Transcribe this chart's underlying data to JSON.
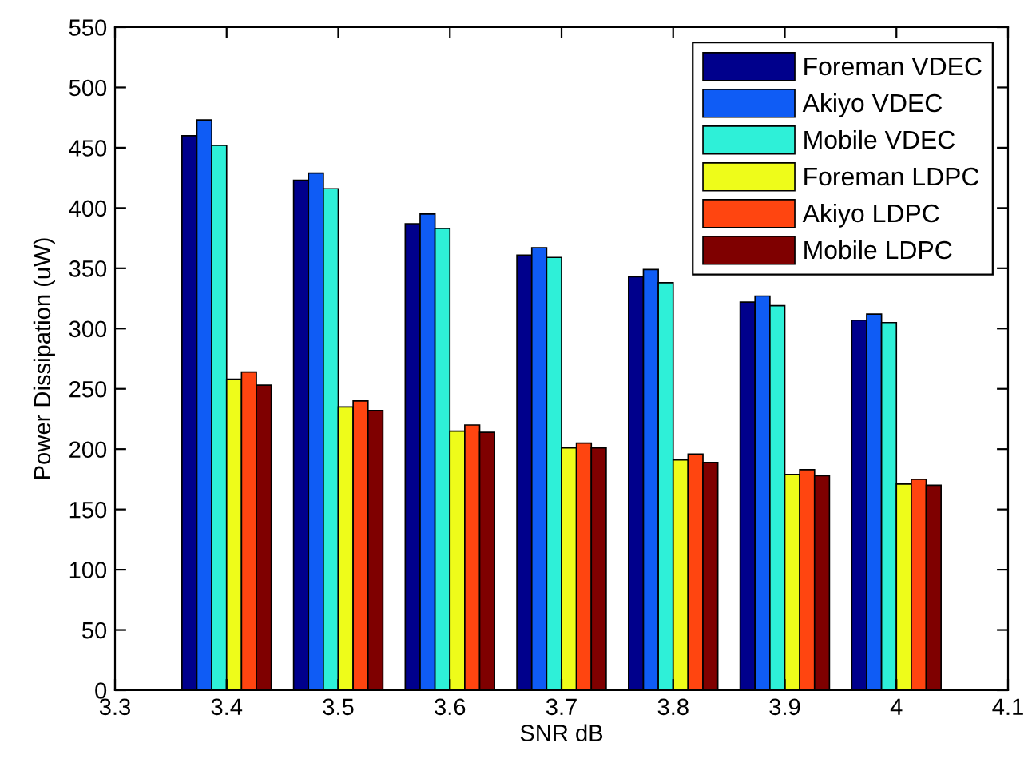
{
  "chart_data": {
    "type": "bar",
    "xlabel": "SNR dB",
    "ylabel": "Power Dissipation (uW)",
    "x": [
      3.4,
      3.5,
      3.6,
      3.7,
      3.8,
      3.9,
      4.0
    ],
    "series": [
      {
        "name": "Foreman VDEC",
        "color": "#00008c",
        "values": [
          460,
          423,
          387,
          361,
          343,
          322,
          307
        ]
      },
      {
        "name": "Akiyo VDEC",
        "color": "#0f5cf5",
        "values": [
          473,
          429,
          395,
          367,
          349,
          327,
          312
        ]
      },
      {
        "name": "Mobile VDEC",
        "color": "#2ef0d8",
        "values": [
          452,
          416,
          383,
          359,
          338,
          319,
          305
        ]
      },
      {
        "name": "Foreman LDPC",
        "color": "#eefc1a",
        "values": [
          258,
          235,
          215,
          201,
          191,
          179,
          171
        ]
      },
      {
        "name": "Akiyo LDPC",
        "color": "#ff4510",
        "values": [
          264,
          240,
          220,
          205,
          196,
          183,
          175
        ]
      },
      {
        "name": "Mobile LDPC",
        "color": "#7f0000",
        "values": [
          253,
          232,
          214,
          201,
          189,
          178,
          170
        ]
      }
    ],
    "xlim": [
      3.3,
      4.1
    ],
    "xticks": [
      3.3,
      3.4,
      3.5,
      3.6,
      3.7,
      3.8,
      3.9,
      4,
      4.1
    ],
    "ylim": [
      0,
      550
    ],
    "yticks": [
      0,
      50,
      100,
      150,
      200,
      250,
      300,
      350,
      400,
      450,
      500,
      550
    ],
    "legend": "top right"
  }
}
